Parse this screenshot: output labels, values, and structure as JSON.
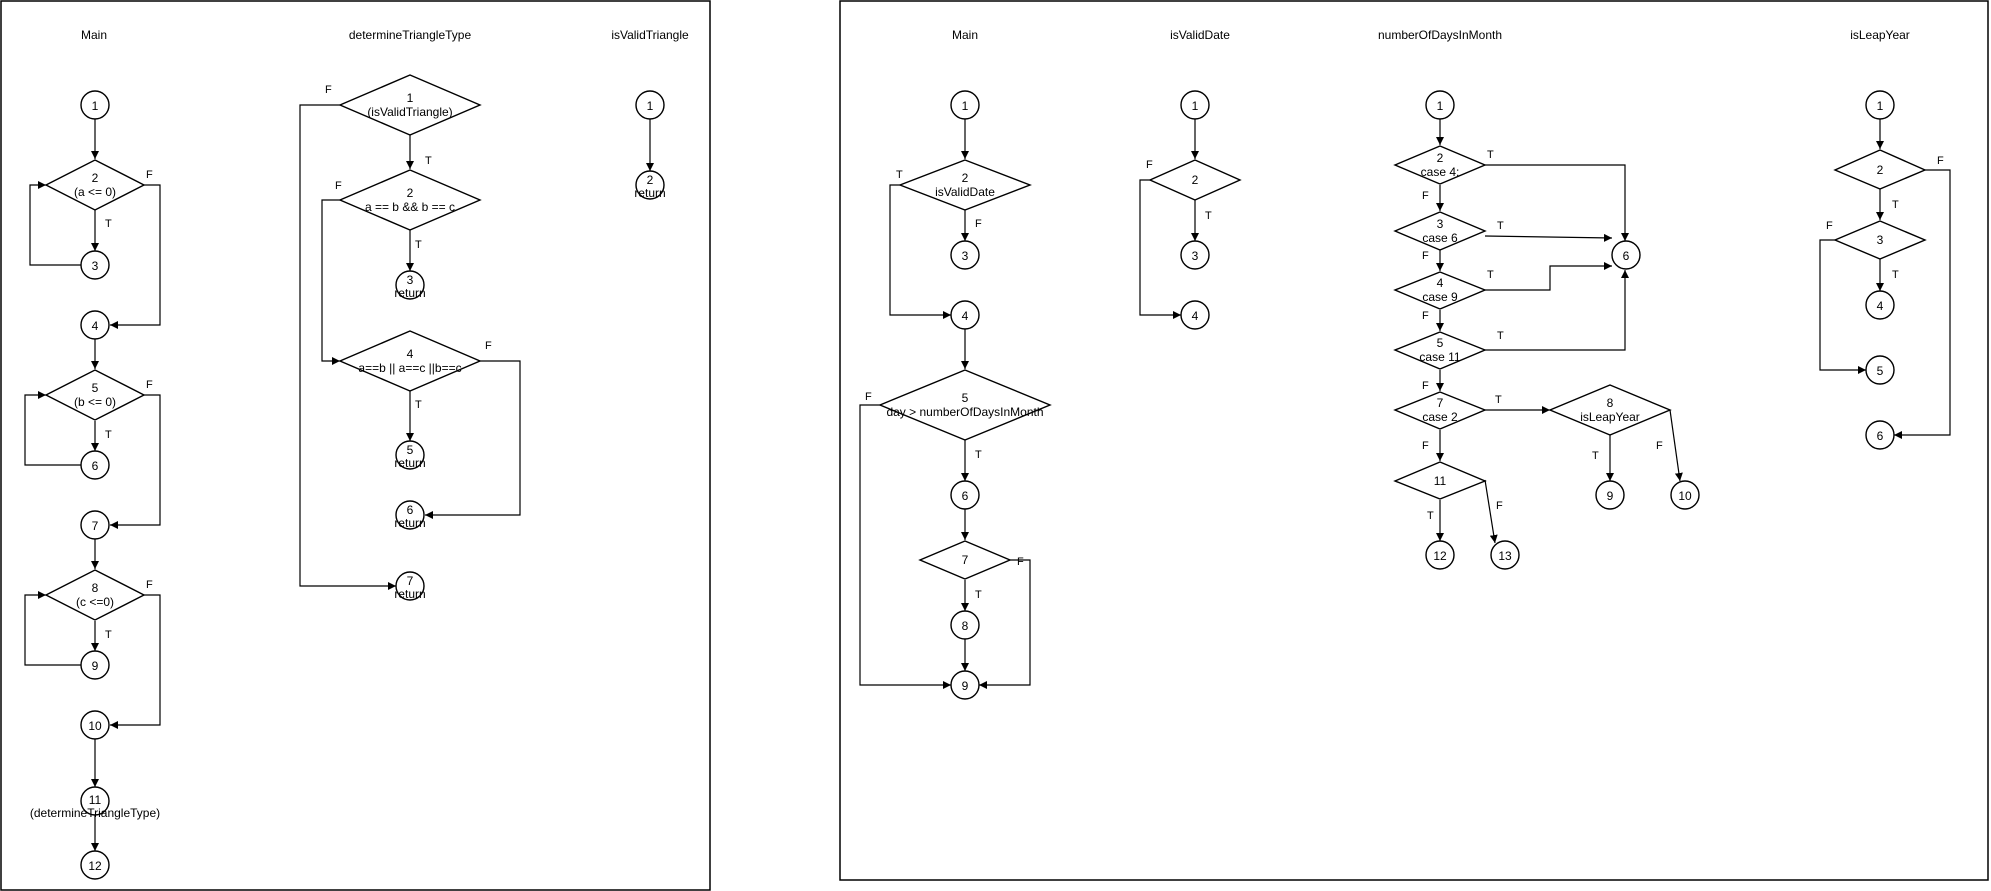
{
  "panels": [
    {
      "titles": [
        "Main",
        "determineTriangleType",
        "isValidTriangle"
      ]
    },
    {
      "titles": [
        "Main",
        "isValidDate",
        "numberOfDaysInMonth",
        "isLeapYear"
      ]
    }
  ],
  "colors": {
    "stroke": "#000000",
    "background": "#ffffff"
  },
  "arrow_markers": [
    "T",
    "F"
  ],
  "graphs": {
    "left_main": [
      {
        "id": "1",
        "shape": "circle",
        "lines": [
          "1"
        ]
      },
      {
        "id": "2",
        "shape": "diamond",
        "lines": [
          "2",
          "(a <= 0)"
        ]
      },
      {
        "id": "3",
        "shape": "circle",
        "lines": [
          "3"
        ]
      },
      {
        "id": "4",
        "shape": "circle",
        "lines": [
          "4"
        ]
      },
      {
        "id": "5",
        "shape": "diamond",
        "lines": [
          "5",
          "(b <= 0)"
        ]
      },
      {
        "id": "6",
        "shape": "circle",
        "lines": [
          "6"
        ]
      },
      {
        "id": "7",
        "shape": "circle",
        "lines": [
          "7"
        ]
      },
      {
        "id": "8",
        "shape": "diamond",
        "lines": [
          "8",
          "(c <=0)"
        ]
      },
      {
        "id": "9",
        "shape": "circle",
        "lines": [
          "9"
        ]
      },
      {
        "id": "10",
        "shape": "circle",
        "lines": [
          "10"
        ]
      },
      {
        "id": "11",
        "shape": "circle",
        "lines": [
          "11",
          "(determineTriangleType)"
        ]
      },
      {
        "id": "12",
        "shape": "circle",
        "lines": [
          "12"
        ]
      }
    ],
    "determine_triangle_type": [
      {
        "id": "1",
        "shape": "diamond",
        "lines": [
          "1",
          "(isValidTriangle)"
        ]
      },
      {
        "id": "2",
        "shape": "diamond",
        "lines": [
          "2",
          "a == b && b == c"
        ]
      },
      {
        "id": "3",
        "shape": "circle",
        "lines": [
          "3",
          "return"
        ]
      },
      {
        "id": "4",
        "shape": "diamond",
        "lines": [
          "4",
          "a==b || a==c ||b==c"
        ]
      },
      {
        "id": "5",
        "shape": "circle",
        "lines": [
          "5",
          "return"
        ]
      },
      {
        "id": "6",
        "shape": "circle",
        "lines": [
          "6",
          "return"
        ]
      },
      {
        "id": "7",
        "shape": "circle",
        "lines": [
          "7",
          "return"
        ]
      }
    ],
    "is_valid_triangle": [
      {
        "id": "1",
        "shape": "circle",
        "lines": [
          "1"
        ]
      },
      {
        "id": "2",
        "shape": "circle",
        "lines": [
          "2",
          "return"
        ]
      }
    ],
    "right_main": [
      {
        "id": "1",
        "shape": "circle",
        "lines": [
          "1"
        ]
      },
      {
        "id": "2",
        "shape": "diamond",
        "lines": [
          "2",
          "isValidDate"
        ]
      },
      {
        "id": "3",
        "shape": "circle",
        "lines": [
          "3"
        ]
      },
      {
        "id": "4",
        "shape": "circle",
        "lines": [
          "4"
        ]
      },
      {
        "id": "5",
        "shape": "diamond",
        "lines": [
          "5",
          "day > numberOfDaysInMonth"
        ]
      },
      {
        "id": "6",
        "shape": "circle",
        "lines": [
          "6"
        ]
      },
      {
        "id": "7",
        "shape": "diamond",
        "lines": [
          "7"
        ]
      },
      {
        "id": "8",
        "shape": "circle",
        "lines": [
          "8"
        ]
      },
      {
        "id": "9",
        "shape": "circle",
        "lines": [
          "9"
        ]
      }
    ],
    "is_valid_date": [
      {
        "id": "1",
        "shape": "circle",
        "lines": [
          "1"
        ]
      },
      {
        "id": "2",
        "shape": "diamond",
        "lines": [
          "2"
        ]
      },
      {
        "id": "3",
        "shape": "circle",
        "lines": [
          "3"
        ]
      },
      {
        "id": "4",
        "shape": "circle",
        "lines": [
          "4"
        ]
      }
    ],
    "number_of_days_in_month": [
      {
        "id": "1",
        "shape": "circle",
        "lines": [
          "1"
        ]
      },
      {
        "id": "2",
        "shape": "diamond",
        "lines": [
          "2",
          "case 4:"
        ]
      },
      {
        "id": "3",
        "shape": "diamond",
        "lines": [
          "3",
          "case 6"
        ]
      },
      {
        "id": "4",
        "shape": "diamond",
        "lines": [
          "4",
          "case 9"
        ]
      },
      {
        "id": "5",
        "shape": "diamond",
        "lines": [
          "5",
          "case 11"
        ]
      },
      {
        "id": "6",
        "shape": "circle",
        "lines": [
          "6"
        ]
      },
      {
        "id": "7",
        "shape": "diamond",
        "lines": [
          "7",
          "case 2"
        ]
      },
      {
        "id": "8",
        "shape": "diamond",
        "lines": [
          "8",
          "isLeapYear"
        ]
      },
      {
        "id": "9",
        "shape": "circle",
        "lines": [
          "9"
        ]
      },
      {
        "id": "10",
        "shape": "circle",
        "lines": [
          "10"
        ]
      },
      {
        "id": "11",
        "shape": "diamond",
        "lines": [
          "11"
        ]
      },
      {
        "id": "12",
        "shape": "circle",
        "lines": [
          "12"
        ]
      },
      {
        "id": "13",
        "shape": "circle",
        "lines": [
          "13"
        ]
      }
    ],
    "is_leap_year": [
      {
        "id": "1",
        "shape": "circle",
        "lines": [
          "1"
        ]
      },
      {
        "id": "2",
        "shape": "diamond",
        "lines": [
          "2"
        ]
      },
      {
        "id": "3",
        "shape": "diamond",
        "lines": [
          "3"
        ]
      },
      {
        "id": "4",
        "shape": "circle",
        "lines": [
          "4"
        ]
      },
      {
        "id": "5",
        "shape": "circle",
        "lines": [
          "5"
        ]
      },
      {
        "id": "6",
        "shape": "circle",
        "lines": [
          "6"
        ]
      }
    ]
  }
}
